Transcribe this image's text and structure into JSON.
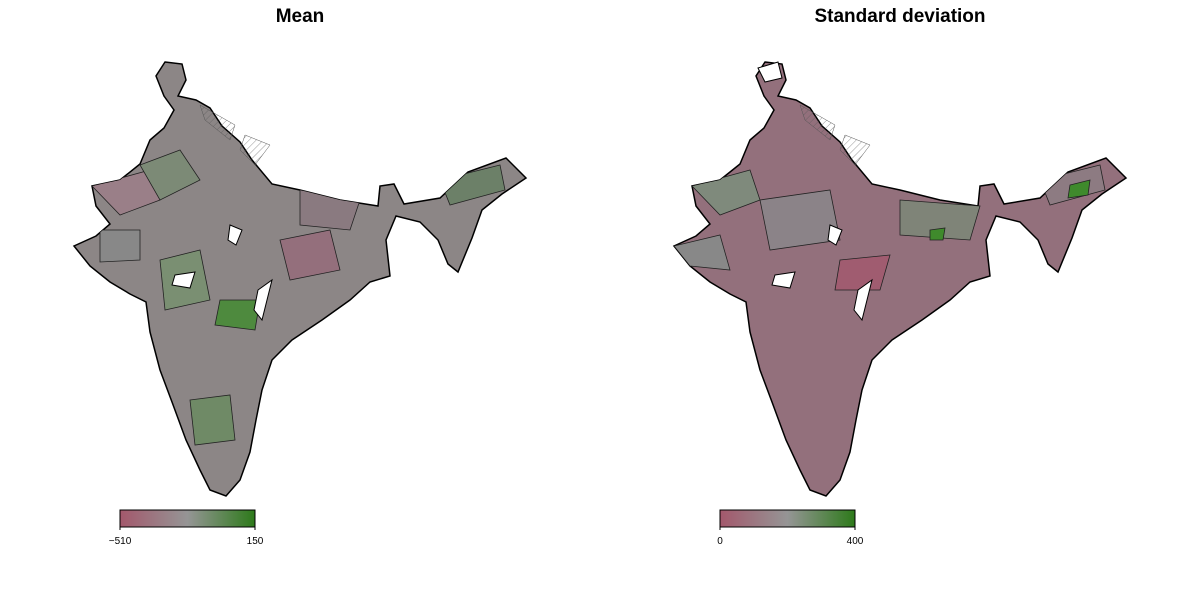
{
  "maps": [
    {
      "title": "Mean",
      "colorbar": {
        "colors": [
          "#a3586c",
          "#959595",
          "#2d7a1a"
        ],
        "ticks": [
          {
            "value": -510,
            "label": "−510"
          },
          150
        ]
      }
    },
    {
      "title": "Standard deviation",
      "colorbar": {
        "colors": [
          "#a3586c",
          "#959595",
          "#2d7a1a"
        ],
        "ticks": [
          0,
          400
        ]
      }
    }
  ]
}
